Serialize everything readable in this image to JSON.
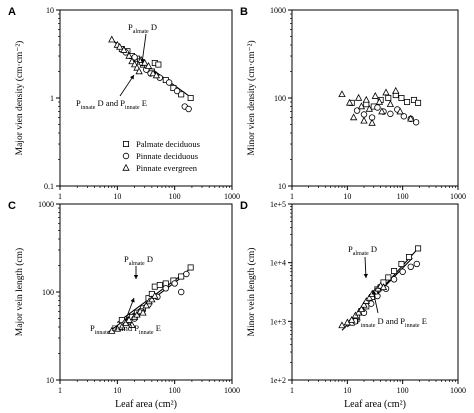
{
  "colors": {
    "ink": "#000000",
    "paper": "#ffffff"
  },
  "legend": {
    "placement": "lower-right inside panel A",
    "entries": [
      {
        "label": "Palmate deciduous",
        "marker": "square"
      },
      {
        "label": "Pinnate deciduous",
        "marker": "circle"
      },
      {
        "label": "Pinnate evergreen",
        "marker": "triangle"
      }
    ]
  },
  "axes_labels": {
    "major_density": "Major vien density (cm·cm⁻²)",
    "minor_density": "Minor vien density (cm·cm⁻²)",
    "major_length": "Major vein length (cm)",
    "minor_length": "Minor vein length (cm)",
    "leaf_area": "Leaf area (cm²)"
  },
  "chart_data": [
    {
      "panel": "A",
      "type": "scatter",
      "xscale": "log",
      "yscale": "log",
      "xlim": [
        1,
        1000
      ],
      "ylim": [
        0.1,
        10
      ],
      "xticks": [
        "1",
        "10",
        "100",
        "1000"
      ],
      "yticks": [
        "0.1",
        "1",
        "10"
      ],
      "xlabel": "",
      "ylabel": "Major vien density (cm·cm⁻²)",
      "grid": false,
      "series": [
        {
          "name": "Palmate deciduous",
          "marker": "square",
          "points": [
            [
              12,
              3.6
            ],
            [
              15,
              3.4
            ],
            [
              18,
              3.0
            ],
            [
              22,
              2.8
            ],
            [
              25,
              2.6
            ],
            [
              28,
              2.4
            ],
            [
              33,
              2.2
            ],
            [
              40,
              2.0
            ],
            [
              45,
              2.5
            ],
            [
              52,
              2.4
            ],
            [
              70,
              1.6
            ],
            [
              95,
              1.3
            ],
            [
              130,
              1.1
            ],
            [
              190,
              1.0
            ]
          ]
        },
        {
          "name": "Pinnate deciduous",
          "marker": "circle",
          "points": [
            [
              14,
              3.3
            ],
            [
              20,
              2.9
            ],
            [
              27,
              2.5
            ],
            [
              32,
              2.1
            ],
            [
              38,
              1.9
            ],
            [
              55,
              1.7
            ],
            [
              80,
              1.5
            ],
            [
              110,
              1.2
            ],
            [
              150,
              0.8
            ],
            [
              175,
              0.75
            ]
          ]
        },
        {
          "name": "Pinnate evergreen",
          "marker": "triangle",
          "points": [
            [
              8,
              4.6
            ],
            [
              10,
              4.0
            ],
            [
              11,
              3.8
            ],
            [
              13,
              3.5
            ],
            [
              16,
              3.0
            ],
            [
              18,
              2.6
            ],
            [
              20,
              2.4
            ],
            [
              22,
              2.2
            ],
            [
              24,
              2.0
            ],
            [
              26,
              2.7
            ],
            [
              30,
              2.5
            ],
            [
              35,
              2.3
            ],
            [
              42,
              1.9
            ],
            [
              48,
              1.8
            ]
          ]
        }
      ],
      "fits": [
        {
          "label_base": "P",
          "label_sub": "almate",
          "label_tail": " D",
          "from": [
            9,
            4.3
          ],
          "to": [
            180,
            1.05
          ]
        },
        {
          "label_base": "P",
          "label_sub": "innate",
          "label_tail": " D and P",
          "label_sub2": "innate",
          "label_tail2": " E",
          "from": [
            8,
            4.6
          ],
          "to": [
            95,
            1.35
          ]
        }
      ]
    },
    {
      "panel": "B",
      "type": "scatter",
      "xscale": "log",
      "yscale": "log",
      "xlim": [
        1,
        1000
      ],
      "ylim": [
        10,
        1000
      ],
      "xticks": [
        "1",
        "10",
        "100",
        "1000"
      ],
      "yticks": [
        "10",
        "100",
        "1000"
      ],
      "xlabel": "",
      "ylabel": "Minor vien density (cm·cm⁻²)",
      "grid": false,
      "series": [
        {
          "name": "Palmate deciduous",
          "marker": "square",
          "points": [
            [
              12,
              88
            ],
            [
              22,
              85
            ],
            [
              30,
              80
            ],
            [
              40,
              95
            ],
            [
              55,
              100
            ],
            [
              75,
              108
            ],
            [
              95,
              100
            ],
            [
              120,
              90
            ],
            [
              160,
              95
            ],
            [
              190,
              88
            ]
          ]
        },
        {
          "name": "Pinnate deciduous",
          "marker": "circle",
          "points": [
            [
              15,
              72
            ],
            [
              20,
              65
            ],
            [
              28,
              60
            ],
            [
              35,
              78
            ],
            [
              45,
              70
            ],
            [
              60,
              66
            ],
            [
              80,
              74
            ],
            [
              105,
              62
            ],
            [
              140,
              58
            ],
            [
              175,
              53
            ]
          ]
        },
        {
          "name": "Pinnate evergreen",
          "marker": "triangle",
          "points": [
            [
              8,
              110
            ],
            [
              11,
              88
            ],
            [
              13,
              60
            ],
            [
              16,
              100
            ],
            [
              18,
              80
            ],
            [
              20,
              55
            ],
            [
              22,
              95
            ],
            [
              25,
              75
            ],
            [
              28,
              52
            ],
            [
              32,
              105
            ],
            [
              38,
              90
            ],
            [
              42,
              70
            ],
            [
              50,
              115
            ],
            [
              60,
              85
            ],
            [
              75,
              120
            ],
            [
              90,
              70
            ],
            [
              140,
              58
            ]
          ]
        }
      ]
    },
    {
      "panel": "C",
      "type": "scatter",
      "xscale": "log",
      "yscale": "log",
      "xlim": [
        1,
        1000
      ],
      "ylim": [
        10,
        1000
      ],
      "xticks": [
        "1",
        "10",
        "100",
        "1000"
      ],
      "yticks": [
        "10",
        "100",
        "1000"
      ],
      "xlabel": "Leaf area (cm²)",
      "ylabel": "Major vein length (cm)",
      "grid": false,
      "series": [
        {
          "name": "Palmate deciduous",
          "marker": "square",
          "points": [
            [
              12,
              48
            ],
            [
              15,
              46
            ],
            [
              18,
              52
            ],
            [
              22,
              58
            ],
            [
              28,
              65
            ],
            [
              35,
              85
            ],
            [
              40,
              95
            ],
            [
              45,
              115
            ],
            [
              55,
              120
            ],
            [
              70,
              125
            ],
            [
              95,
              135
            ],
            [
              130,
              150
            ],
            [
              190,
              190
            ]
          ]
        },
        {
          "name": "Pinnate deciduous",
          "marker": "circle",
          "points": [
            [
              14,
              45
            ],
            [
              20,
              50
            ],
            [
              27,
              60
            ],
            [
              35,
              72
            ],
            [
              50,
              88
            ],
            [
              70,
              110
            ],
            [
              100,
              125
            ],
            [
              130,
              100
            ],
            [
              160,
              160
            ]
          ]
        },
        {
          "name": "Pinnate evergreen",
          "marker": "triangle",
          "points": [
            [
              8,
              36
            ],
            [
              10,
              38
            ],
            [
              12,
              40
            ],
            [
              14,
              44
            ],
            [
              16,
              48
            ],
            [
              18,
              42
            ],
            [
              20,
              52
            ],
            [
              22,
              55
            ],
            [
              25,
              60
            ],
            [
              28,
              58
            ],
            [
              32,
              70
            ],
            [
              36,
              78
            ],
            [
              40,
              82
            ],
            [
              45,
              90
            ]
          ]
        }
      ],
      "fits": [
        {
          "label_base": "P",
          "label_sub": "almate",
          "label_tail": " D",
          "from": [
            10,
            45
          ],
          "to": [
            190,
            185
          ]
        },
        {
          "label_base": "P",
          "label_sub": "innate",
          "label_tail": " D and P",
          "label_sub2": "innate",
          "label_tail2": " E",
          "from": [
            7,
            35
          ],
          "to": [
            120,
            140
          ]
        }
      ]
    },
    {
      "panel": "D",
      "type": "scatter",
      "xscale": "log",
      "yscale": "log",
      "xlim": [
        1,
        1000
      ],
      "ylim": [
        100,
        100000
      ],
      "xticks": [
        "1",
        "10",
        "100",
        "1000"
      ],
      "yticks": [
        "1e+2",
        "1e+3",
        "1e+4",
        "1e+5"
      ],
      "xlabel": "Leaf area (cm²)",
      "ylabel": "Minor vein length (cm)",
      "grid": false,
      "series": [
        {
          "name": "Palmate deciduous",
          "marker": "square",
          "points": [
            [
              12,
              950
            ],
            [
              15,
              1200
            ],
            [
              18,
              1500
            ],
            [
              22,
              1800
            ],
            [
              28,
              2600
            ],
            [
              35,
              3500
            ],
            [
              40,
              3800
            ],
            [
              45,
              4600
            ],
            [
              55,
              5600
            ],
            [
              70,
              7200
            ],
            [
              95,
              9500
            ],
            [
              130,
              12500
            ],
            [
              190,
              17500
            ]
          ]
        },
        {
          "name": "Pinnate deciduous",
          "marker": "circle",
          "points": [
            [
              14,
              1000
            ],
            [
              20,
              1400
            ],
            [
              27,
              2000
            ],
            [
              35,
              2700
            ],
            [
              50,
              3600
            ],
            [
              70,
              5200
            ],
            [
              100,
              7000
            ],
            [
              140,
              8500
            ],
            [
              180,
              9500
            ]
          ]
        },
        {
          "name": "Pinnate evergreen",
          "marker": "triangle",
          "points": [
            [
              8,
              850
            ],
            [
              10,
              950
            ],
            [
              12,
              1050
            ],
            [
              14,
              1250
            ],
            [
              16,
              1400
            ],
            [
              18,
              1600
            ],
            [
              20,
              1900
            ],
            [
              22,
              2200
            ],
            [
              25,
              2500
            ],
            [
              28,
              2900
            ],
            [
              32,
              3200
            ],
            [
              36,
              3600
            ],
            [
              40,
              4000
            ],
            [
              45,
              3800
            ]
          ]
        }
      ],
      "fits": [
        {
          "label_base": "P",
          "label_sub": "almate",
          "label_tail": " D",
          "from": [
            10,
            800
          ],
          "to": [
            190,
            17500
          ]
        },
        {
          "label_base": "P",
          "label_sub": "innate",
          "label_tail": " D and P",
          "label_sub2": "innate",
          "label_tail2": " E",
          "from": [
            8,
            700
          ],
          "to": [
            150,
            12000
          ]
        }
      ]
    }
  ]
}
